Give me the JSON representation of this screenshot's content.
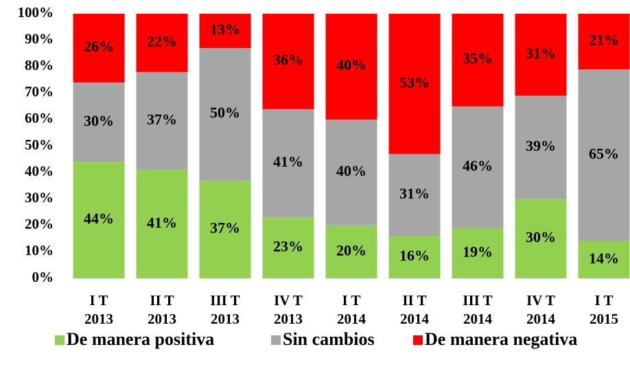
{
  "chart_data": {
    "type": "stacked_bar",
    "categories": [
      "I T\n2013",
      "II T\n2013",
      "III T\n2013",
      "IV T\n2013",
      "I T\n2014",
      "II T\n2014",
      "III T\n2014",
      "IV T\n2014",
      "I T\n2015"
    ],
    "series": [
      {
        "name": "De manera positiva",
        "color": "#92d050",
        "values": [
          44,
          41,
          37,
          23,
          20,
          16,
          19,
          30,
          14
        ],
        "value_labels": [
          "44%",
          "41%",
          "37%",
          "23%",
          "20%",
          "16%",
          "19%",
          "30%",
          "14%"
        ]
      },
      {
        "name": "Sin cambios",
        "color": "#a6a6a6",
        "values": [
          30,
          37,
          50,
          41,
          40,
          31,
          46,
          39,
          65
        ],
        "value_labels": [
          "30%",
          "37%",
          "50%",
          "41%",
          "40%",
          "31%",
          "46%",
          "39%",
          "65%"
        ]
      },
      {
        "name": "De manera negativa",
        "color": "#ff0000",
        "values": [
          26,
          22,
          13,
          36,
          40,
          53,
          35,
          31,
          21
        ],
        "value_labels": [
          "26%",
          "22%",
          "13%",
          "36%",
          "40%",
          "53%",
          "35%",
          "31%",
          "21%"
        ]
      }
    ],
    "ylim": [
      0,
      100
    ],
    "yticks": [
      {
        "value": 0,
        "label": "0%"
      },
      {
        "value": 10,
        "label": "10%"
      },
      {
        "value": 20,
        "label": "20%"
      },
      {
        "value": 30,
        "label": "30%"
      },
      {
        "value": 40,
        "label": "40%"
      },
      {
        "value": 50,
        "label": "50%"
      },
      {
        "value": 60,
        "label": "60%"
      },
      {
        "value": 70,
        "label": "70%"
      },
      {
        "value": 80,
        "label": "80%"
      },
      {
        "value": 90,
        "label": "90%"
      },
      {
        "value": 100,
        "label": "100%"
      }
    ],
    "grid": false,
    "legend": "bottom"
  }
}
